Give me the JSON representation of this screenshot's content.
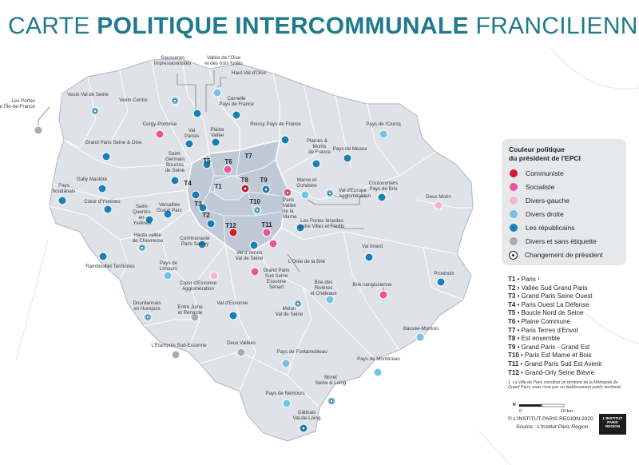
{
  "title": {
    "prefix": "CARTE ",
    "bold": "POLITIQUE INTERCOMMUNALE",
    "suffix": " FRANCILIENNE"
  },
  "colors": {
    "communiste": "#d7182a",
    "socialiste": "#e8559a",
    "divers_gauche": "#f4b6cf",
    "divers_droite": "#74c2e6",
    "republicains": "#1a7fb8",
    "divers_sans": "#a9abae",
    "map_fill": "#dfe3e8",
    "map_border": "#ffffff",
    "metropole_fill": "#bfcad6"
  },
  "legend": {
    "title_line1": "Couleur politique",
    "title_line2": "du président de l'EPCI",
    "items": [
      {
        "label": "Communiste",
        "color": "#d7182a",
        "change": false
      },
      {
        "label": "Socialiste",
        "color": "#e8559a",
        "change": false
      },
      {
        "label": "Divers-gauche",
        "color": "#f4b6cf",
        "change": false
      },
      {
        "label": "Divers droite",
        "color": "#74c2e6",
        "change": false
      },
      {
        "label": "Les républicains",
        "color": "#1a7fb8",
        "change": false
      },
      {
        "label": "Divers et sans étiquette",
        "color": "#a9abae",
        "change": false
      },
      {
        "label": "Changement de président",
        "color": "#ffffff",
        "change": true
      }
    ]
  },
  "territories": [
    {
      "code": "T1",
      "name": "Paris ¹"
    },
    {
      "code": "T2",
      "name": "Vallée Sud Grand Paris"
    },
    {
      "code": "T3",
      "name": "Grand Paris Seine Ouest"
    },
    {
      "code": "T4",
      "name": "Paris Ouest La Défense"
    },
    {
      "code": "T5",
      "name": "Boucle Nord de Seine"
    },
    {
      "code": "T6",
      "name": "Plaine Commune"
    },
    {
      "code": "T7",
      "name": "Paris Terres d'Envol"
    },
    {
      "code": "T8",
      "name": "Est ensemble"
    },
    {
      "code": "T9",
      "name": "Grand Paris - Grand Est"
    },
    {
      "code": "T10",
      "name": "Paris Est Marne et Bois"
    },
    {
      "code": "T11",
      "name": "Grand Paris Sud Est Avenir"
    },
    {
      "code": "T12",
      "name": "Grand-Orly Seine Bièvre"
    }
  ],
  "footnote": "La Ville de Paris constitue un territoire de la Métropole du Grand Paris, mais n'est pas un établissement public territorial.",
  "footnote_mark": "1",
  "scale": {
    "zero": "0",
    "label": "10 km"
  },
  "copyright": "© L'INSTITUT PARIS REGION 2020",
  "source": "Source : L'Institut Paris Region",
  "logo_text": "L'INSTITUT PARIS REGION",
  "map_labels": [
    {
      "t": "Sausseron"
    },
    {
      "t": "Impressionnistes"
    },
    {
      "t": "Vallée de l'Oise"
    },
    {
      "t": "et des trois forêts"
    },
    {
      "t": "Haut-Val-d'Oise"
    },
    {
      "t": "Les Portes"
    },
    {
      "t": "de l'Île-de-France"
    },
    {
      "t": "Vexin Val de Seine"
    },
    {
      "t": "Vexin Centre"
    },
    {
      "t": "Carnelle"
    },
    {
      "t": "Pays de France"
    },
    {
      "t": "Cergy-Pontoise"
    },
    {
      "t": "Val"
    },
    {
      "t": "Parisis"
    },
    {
      "t": "Plaine"
    },
    {
      "t": "Vallée"
    },
    {
      "t": "Roissy Pays de France"
    },
    {
      "t": "Pays de l'Ourcq"
    },
    {
      "t": "Grand Paris Seine & Oise"
    },
    {
      "t": "Plaines &"
    },
    {
      "t": "Monts"
    },
    {
      "t": "de France"
    },
    {
      "t": "Pays de Meaux"
    },
    {
      "t": "Saint-"
    },
    {
      "t": "Germain"
    },
    {
      "t": "Boucles"
    },
    {
      "t": "de Seine"
    },
    {
      "t": "Gally Mauldre"
    },
    {
      "t": "Marne et"
    },
    {
      "t": "Gondoire"
    },
    {
      "t": "Pays"
    },
    {
      "t": "houdanais"
    },
    {
      "t": "Val d'Europe"
    },
    {
      "t": "Agglomération"
    },
    {
      "t": "Coulommiers"
    },
    {
      "t": "Pays de Brie"
    },
    {
      "t": "Cœur d'Yvelines"
    },
    {
      "t": "Versailles"
    },
    {
      "t": "Grand Parc"
    },
    {
      "t": "Saint-"
    },
    {
      "t": "Quentin-"
    },
    {
      "t": "en-"
    },
    {
      "t": "Yvelines"
    },
    {
      "t": "Paris"
    },
    {
      "t": "Vallée"
    },
    {
      "t": "de la"
    },
    {
      "t": "Marne"
    },
    {
      "t": "Deux Morin"
    },
    {
      "t": "Les Portes briardes"
    },
    {
      "t": "entre Villes et Forêts"
    },
    {
      "t": "Haute vallée"
    },
    {
      "t": "de Chevreuse"
    },
    {
      "t": "Communauté"
    },
    {
      "t": "Paris Saclay"
    },
    {
      "t": "Val d'Yerres"
    },
    {
      "t": "Val de Seine"
    },
    {
      "t": "Val briard"
    },
    {
      "t": "L'Orée de la Brie"
    },
    {
      "t": "Rambouillet Territoires"
    },
    {
      "t": "Pays de"
    },
    {
      "t": "Limours"
    },
    {
      "t": "Grand Paris"
    },
    {
      "t": "Sud Seine"
    },
    {
      "t": "Essonne"
    },
    {
      "t": "Sénart"
    },
    {
      "t": "Provinois"
    },
    {
      "t": "Cœur d'Essonne"
    },
    {
      "t": "Agglomération"
    },
    {
      "t": "Brie des"
    },
    {
      "t": "Rivières"
    },
    {
      "t": "et Châteaux"
    },
    {
      "t": "Brie nangissienne"
    },
    {
      "t": "Dourdannais"
    },
    {
      "t": "en Hurepoix"
    },
    {
      "t": "Val d'Essonne"
    },
    {
      "t": "Entre Juine"
    },
    {
      "t": "et Renarde"
    },
    {
      "t": "Melun"
    },
    {
      "t": "Val de Seine"
    },
    {
      "t": "Bassée-Montois"
    },
    {
      "t": "L'Étampois Sud-Essonne"
    },
    {
      "t": "Deux Vallées"
    },
    {
      "t": "Pays de Fontainebleau"
    },
    {
      "t": "Pays de Montereau"
    },
    {
      "t": "Moret"
    },
    {
      "t": "Seine & Loing"
    },
    {
      "t": "Pays de Nemours"
    },
    {
      "t": "Gâtinais"
    },
    {
      "t": "Val-de-Loing"
    }
  ],
  "t_labels": [
    "T1",
    "T2",
    "T3",
    "T4",
    "T5",
    "T6",
    "T7",
    "T8",
    "T9",
    "T10",
    "T11",
    "T12"
  ]
}
